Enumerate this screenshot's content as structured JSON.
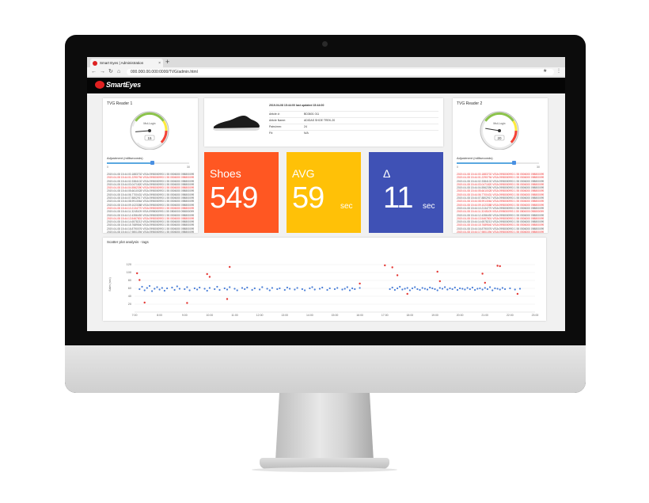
{
  "browser": {
    "tab_title": "Smart Eyes | Administration",
    "tab_close": "×",
    "new_tab": "+",
    "back": "←",
    "forward": "→",
    "reload": "↻",
    "home": "⌂",
    "url": "000.000.00.000:0000/TVG/admin.html",
    "star": "★",
    "menu": "⋮"
  },
  "app": {
    "logo_text": "SmartEyes"
  },
  "reader_left": {
    "title": "TVG Reader 1",
    "gauge_label": "Mul-Logix",
    "gauge_value": "15",
    "gauge_fraction": 0.15,
    "adjust_label": "Adjustment (milliseconds)",
    "slider_value": 0.55,
    "slider_min": "0",
    "slider_max": "30",
    "log_lines": [
      {
        "text": "2019-04-08 15:44:00.1883702 VISA 0998000993 1 55 0506000 0988000993 TAG-03",
        "red": false
      },
      {
        "text": "2019-04-08 15:44:01.2290794 VISA 0998000993 1 55 0506000 0988000993 TAG-03",
        "red": true
      },
      {
        "text": "2019-04-08 15:44:02.3384102 VISA 0998000993 1 55 0506000 0988000993 TAG-03",
        "red": false
      },
      {
        "text": "2019-04-08 15:44:03.0471820 VISA 0998000993 1 55 0506000 0988000993 TAG-03",
        "red": false
      },
      {
        "text": "2019-04-08 15:44:04.5562390 VISA 0998000993 1 55 0506000 0988000993 TAG-03",
        "red": true
      },
      {
        "text": "2019-04-08 15:44:05.6610028 VISA 0998000993 1 55 0506000 0988000993 TAG-03",
        "red": false
      },
      {
        "text": "2019-04-08 15:44:06.7700431 VISA 0998000993 1 55 0506000 0988000993 TAG-03",
        "red": false
      },
      {
        "text": "2019-04-08 15:44:07.8802917 VISA 0998000993 1 55 0506000 0988000993 TAG-03",
        "red": false
      },
      {
        "text": "2019-04-08 15:44:08.9913064 VISA 0998000993 1 55 0506000 0988000993 TAG-03",
        "red": false
      },
      {
        "text": "2019-04-08 15:44:09.1023388 VISA 0998000993 1 55 0506000 0988000993 TAG-03",
        "red": false
      },
      {
        "text": "2019-04-08 15:44:10.2134770 VISA 0998000993 1 55 0506000 0988000993 TAG-03",
        "red": true
      },
      {
        "text": "2019-04-08 15:44:11.3245109 VISA 0998000993 1 55 0506000 0988000993 TAG-03",
        "red": false
      },
      {
        "text": "2019-04-08 15:44:12.4356492 VISA 0998000993 1 55 0506000 0988000993 TAG-03",
        "red": false
      },
      {
        "text": "2019-04-08 15:44:13.5467801 VISA 0998000993 1 55 0506000 0988000993 TAG-03",
        "red": true
      },
      {
        "text": "2019-04-08 15:44:14.6578213 VISA 0998000993 1 55 0506000 0988000993 TAG-03",
        "red": false
      },
      {
        "text": "2019-04-08 15:44:15.7689540 VISA 0998000993 1 55 0506000 0988000993 TAG-03",
        "red": false
      },
      {
        "text": "2019-04-08 15:44:16.8790076 VISA 0998000993 1 55 0506000 0988000993 TAG-03",
        "red": false
      },
      {
        "text": "2019-04-08 15:44:17.9801394 VISA 0998000993 1 55 0506000 0988000993 TAG-03",
        "red": false
      }
    ]
  },
  "reader_right": {
    "title": "TVG Reader 2",
    "gauge_label": "Mul-Logix",
    "gauge_value": "20",
    "gauge_fraction": 0.2,
    "adjust_label": "Adjustment (milliseconds)",
    "slider_value": 0.7,
    "slider_min": "0",
    "slider_max": "30",
    "log_lines": [
      {
        "text": "2019-04-08 15:44:00.1883702 VISA 0998000993 1 55 0506000 0988000993 TAG-03",
        "red": true
      },
      {
        "text": "2019-04-08 15:44:01.2290794 VISA 0998000993 1 55 0506000 0988000993 TAG-03",
        "red": true
      },
      {
        "text": "2019-04-08 15:44:02.3384102 VISA 0998000993 1 55 0506000 0988000993 TAG-03",
        "red": false
      },
      {
        "text": "2019-04-08 15:44:03.0471820 VISA 0998000993 1 55 0506000 0988000993 TAG-03",
        "red": true
      },
      {
        "text": "2019-04-08 15:44:04.5562390 VISA 0998000993 1 55 0506000 0988000993 TAG-03",
        "red": false
      },
      {
        "text": "2019-04-08 15:44:05.6610028 VISA 0998000993 1 55 0506000 0988000993 TAG-03",
        "red": true
      },
      {
        "text": "2019-04-08 15:44:06.7700431 VISA 0998000993 1 55 0506000 0988000993 TAG-03",
        "red": true
      },
      {
        "text": "2019-04-08 15:44:07.8802917 VISA 0998000993 1 55 0506000 0988000993 TAG-03",
        "red": false
      },
      {
        "text": "2019-04-08 15:44:08.9913064 VISA 0998000993 1 55 0506000 0988000993 TAG-03",
        "red": true
      },
      {
        "text": "2019-04-08 15:44:09.1023388 VISA 0998000993 1 55 0506000 0988000993 TAG-03",
        "red": true
      },
      {
        "text": "2019-04-08 15:44:10.2134770 VISA 0998000993 1 55 0506000 0988000993 TAG-03",
        "red": false
      },
      {
        "text": "2019-04-08 15:44:11.3245109 VISA 0998000993 1 55 0506000 0988000993 TAG-03",
        "red": true
      },
      {
        "text": "2019-04-08 15:44:12.4356492 VISA 0998000993 1 55 0506000 0988000993 TAG-03",
        "red": false
      },
      {
        "text": "2019-04-08 15:44:13.5467801 VISA 0998000993 1 55 0506000 0988000993 TAG-03",
        "red": true
      },
      {
        "text": "2019-04-08 15:44:14.6578213 VISA 0998000993 1 55 0506000 0988000993 TAG-03",
        "red": false
      },
      {
        "text": "2019-04-08 15:44:15.7689540 VISA 0998000993 1 55 0506000 0988000993 TAG-03",
        "red": true
      },
      {
        "text": "2019-04-08 15:44:16.8790076 VISA 0998000993 1 55 0506000 0988000993 TAG-03",
        "red": false
      },
      {
        "text": "2019-04-08 15:44:17.9801394 VISA 0998000993 1 55 0506000 0988000993 TAG-03",
        "red": true
      }
    ]
  },
  "product": {
    "heading": "2019-04-08 15:44:00 last updated 15:44:00",
    "rows": [
      {
        "key": "Article #:",
        "value": "BD3601 011"
      },
      {
        "key": "Article Name:",
        "value": "ADIDAS SHOE TREK-20"
      },
      {
        "key": "Pairs/mm:",
        "value": "24"
      },
      {
        "key": "Fit:",
        "value": "N/A"
      }
    ]
  },
  "kpis": {
    "shoes": {
      "label": "Shoes",
      "value": "549",
      "color": "#ff5722"
    },
    "avg": {
      "label": "AVG",
      "value": "59",
      "unit": "sec",
      "color": "#ffc107"
    },
    "delta": {
      "label": "Δ",
      "value": "11",
      "unit": "sec",
      "color": "#3f51b5"
    }
  },
  "chart_data": {
    "type": "scatter",
    "title": "Scatter plot analysis - tags",
    "ylabel": "Sales (sec)",
    "ylim": [
      0,
      140
    ],
    "yticks": [
      "120",
      "100",
      "80",
      "60",
      "40",
      "20"
    ],
    "xticks": [
      "7:00",
      "8:00",
      "9:00",
      "10:00",
      "11:00",
      "12:00",
      "13:00",
      "14:00",
      "15:00",
      "16:00",
      "17:00",
      "18:00",
      "19:00",
      "20:00",
      "21:00",
      "22:00",
      "23:00"
    ],
    "grid": true,
    "series": [
      {
        "color": "#4a7fd8",
        "points": [
          [
            7.2,
            58
          ],
          [
            7.3,
            64
          ],
          [
            7.4,
            55
          ],
          [
            7.5,
            61
          ],
          [
            7.6,
            66
          ],
          [
            7.7,
            53
          ],
          [
            7.8,
            59
          ],
          [
            7.9,
            63
          ],
          [
            8.0,
            57
          ],
          [
            8.1,
            61
          ],
          [
            8.2,
            54
          ],
          [
            8.3,
            60
          ],
          [
            8.5,
            62
          ],
          [
            8.6,
            56
          ],
          [
            8.7,
            65
          ],
          [
            8.8,
            59
          ],
          [
            9.0,
            58
          ],
          [
            9.1,
            63
          ],
          [
            9.2,
            55
          ],
          [
            9.4,
            60
          ],
          [
            9.5,
            57
          ],
          [
            9.6,
            62
          ],
          [
            9.8,
            59
          ],
          [
            9.9,
            54
          ],
          [
            10.0,
            61
          ],
          [
            10.2,
            58
          ],
          [
            10.3,
            64
          ],
          [
            10.4,
            56
          ],
          [
            10.6,
            60
          ],
          [
            10.7,
            57
          ],
          [
            10.8,
            63
          ],
          [
            11.0,
            59
          ],
          [
            11.1,
            55
          ],
          [
            11.3,
            61
          ],
          [
            11.4,
            58
          ],
          [
            11.5,
            62
          ],
          [
            11.7,
            56
          ],
          [
            11.8,
            60
          ],
          [
            12.0,
            57
          ],
          [
            12.1,
            63
          ],
          [
            12.3,
            59
          ],
          [
            12.4,
            55
          ],
          [
            12.5,
            61
          ],
          [
            12.7,
            58
          ],
          [
            12.8,
            60
          ],
          [
            13.0,
            56
          ],
          [
            13.1,
            62
          ],
          [
            13.2,
            59
          ],
          [
            13.4,
            57
          ],
          [
            13.5,
            61
          ],
          [
            13.7,
            58
          ],
          [
            13.8,
            55
          ],
          [
            14.0,
            60
          ],
          [
            14.1,
            63
          ],
          [
            14.2,
            57
          ],
          [
            14.4,
            59
          ],
          [
            14.5,
            62
          ],
          [
            14.7,
            56
          ],
          [
            14.8,
            60
          ],
          [
            15.0,
            58
          ],
          [
            15.1,
            61
          ],
          [
            15.3,
            57
          ],
          [
            15.4,
            59
          ],
          [
            15.5,
            63
          ],
          [
            15.6,
            55
          ],
          [
            15.7,
            60
          ],
          [
            15.8,
            58
          ],
          [
            16.0,
            61
          ],
          [
            17.2,
            58
          ],
          [
            17.3,
            62
          ],
          [
            17.4,
            56
          ],
          [
            17.5,
            60
          ],
          [
            17.6,
            64
          ],
          [
            17.7,
            57
          ],
          [
            17.8,
            59
          ],
          [
            17.9,
            61
          ],
          [
            18.0,
            55
          ],
          [
            18.1,
            60
          ],
          [
            18.2,
            63
          ],
          [
            18.3,
            58
          ],
          [
            18.4,
            56
          ],
          [
            18.5,
            61
          ],
          [
            18.6,
            59
          ],
          [
            18.7,
            57
          ],
          [
            18.8,
            62
          ],
          [
            18.9,
            60
          ],
          [
            19.0,
            58
          ],
          [
            19.1,
            55
          ],
          [
            19.2,
            61
          ],
          [
            19.3,
            59
          ],
          [
            19.4,
            63
          ],
          [
            19.5,
            57
          ],
          [
            19.6,
            60
          ],
          [
            19.7,
            58
          ],
          [
            19.8,
            62
          ],
          [
            19.9,
            56
          ],
          [
            20.0,
            60
          ],
          [
            20.1,
            59
          ],
          [
            20.2,
            57
          ],
          [
            20.3,
            61
          ],
          [
            20.4,
            58
          ],
          [
            20.5,
            62
          ],
          [
            20.6,
            56
          ],
          [
            20.7,
            59
          ],
          [
            20.8,
            60
          ],
          [
            20.9,
            57
          ],
          [
            21.0,
            61
          ],
          [
            21.1,
            58
          ],
          [
            21.2,
            63
          ],
          [
            21.3,
            55
          ],
          [
            21.4,
            60
          ],
          [
            21.5,
            59
          ],
          [
            21.6,
            57
          ],
          [
            21.7,
            61
          ],
          [
            21.8,
            58
          ],
          [
            22.0,
            60
          ],
          [
            22.2,
            57
          ],
          [
            22.4,
            59
          ]
        ]
      },
      {
        "color": "#e53935",
        "points": [
          [
            7.1,
            98
          ],
          [
            7.2,
            81
          ],
          [
            7.4,
            24
          ],
          [
            9.9,
            96
          ],
          [
            10.0,
            89
          ],
          [
            9.1,
            23
          ],
          [
            10.8,
            114
          ],
          [
            10.7,
            33
          ],
          [
            16.0,
            72
          ],
          [
            17.0,
            118
          ],
          [
            17.3,
            113
          ],
          [
            17.5,
            93
          ],
          [
            17.9,
            46
          ],
          [
            19.1,
            102
          ],
          [
            19.2,
            78
          ],
          [
            20.9,
            97
          ],
          [
            21.0,
            74
          ],
          [
            21.5,
            117
          ],
          [
            21.6,
            116
          ],
          [
            22.3,
            46
          ]
        ]
      }
    ]
  }
}
